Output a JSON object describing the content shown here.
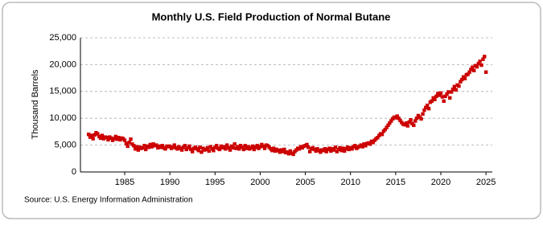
{
  "chart_data": {
    "type": "scatter",
    "title": "Monthly U.S. Field Production of Normal Butane",
    "y_label": "Thousand Barrels",
    "source": "Source: U.S. Energy Information Administration",
    "color": "#cc0000",
    "grid": true,
    "xlim": [
      1980.1,
      2025.7
    ],
    "xticks": [
      1985,
      1990,
      1995,
      2000,
      2005,
      2010,
      2015,
      2020,
      2025
    ],
    "ylim": [
      0,
      25000
    ],
    "yticks": [
      0,
      {
        "value": 5000,
        "label": "5,000"
      },
      {
        "value": 10000,
        "label": "10,000"
      },
      {
        "value": 15000,
        "label": "15,000"
      },
      {
        "value": 20000,
        "label": "20,000"
      },
      {
        "value": 25000,
        "label": "25,000"
      }
    ],
    "x": [
      1981,
      1981.17,
      1981.33,
      1981.5,
      1981.67,
      1981.83,
      1982,
      1982.17,
      1982.33,
      1982.5,
      1982.67,
      1982.83,
      1983,
      1983.17,
      1983.33,
      1983.5,
      1983.67,
      1983.83,
      1984,
      1984.17,
      1984.33,
      1984.5,
      1984.67,
      1984.83,
      1985,
      1985.17,
      1985.33,
      1985.5,
      1985.67,
      1985.83,
      1986,
      1986.17,
      1986.33,
      1986.5,
      1986.67,
      1986.83,
      1987,
      1987.17,
      1987.33,
      1987.5,
      1987.67,
      1987.83,
      1988,
      1988.17,
      1988.33,
      1988.5,
      1988.67,
      1988.83,
      1989,
      1989.17,
      1989.33,
      1989.5,
      1989.67,
      1989.83,
      1990,
      1990.17,
      1990.33,
      1990.5,
      1990.67,
      1990.83,
      1991,
      1991.17,
      1991.33,
      1991.5,
      1991.67,
      1991.83,
      1992,
      1992.17,
      1992.33,
      1992.5,
      1992.67,
      1992.83,
      1993,
      1993.17,
      1993.33,
      1993.5,
      1993.67,
      1993.83,
      1994,
      1994.17,
      1994.33,
      1994.5,
      1994.67,
      1994.83,
      1995,
      1995.17,
      1995.33,
      1995.5,
      1995.67,
      1995.83,
      1996,
      1996.17,
      1996.33,
      1996.5,
      1996.67,
      1996.83,
      1997,
      1997.17,
      1997.33,
      1997.5,
      1997.67,
      1997.83,
      1998,
      1998.17,
      1998.33,
      1998.5,
      1998.67,
      1998.83,
      1999,
      1999.17,
      1999.33,
      1999.5,
      1999.67,
      1999.83,
      2000,
      2000.17,
      2000.33,
      2000.5,
      2000.67,
      2000.83,
      2001,
      2001.17,
      2001.33,
      2001.5,
      2001.67,
      2001.83,
      2002,
      2002.17,
      2002.33,
      2002.5,
      2002.67,
      2002.83,
      2003,
      2003.17,
      2003.33,
      2003.5,
      2003.67,
      2003.83,
      2004,
      2004.17,
      2004.33,
      2004.5,
      2004.67,
      2004.83,
      2005,
      2005.17,
      2005.33,
      2005.5,
      2005.67,
      2005.83,
      2006,
      2006.17,
      2006.33,
      2006.5,
      2006.67,
      2006.83,
      2007,
      2007.17,
      2007.33,
      2007.5,
      2007.67,
      2007.83,
      2008,
      2008.17,
      2008.33,
      2008.5,
      2008.67,
      2008.83,
      2009,
      2009.17,
      2009.33,
      2009.5,
      2009.67,
      2009.83,
      2010,
      2010.17,
      2010.33,
      2010.5,
      2010.67,
      2010.83,
      2011,
      2011.17,
      2011.33,
      2011.5,
      2011.67,
      2011.83,
      2012,
      2012.17,
      2012.33,
      2012.5,
      2012.67,
      2012.83,
      2013,
      2013.17,
      2013.33,
      2013.5,
      2013.67,
      2013.83,
      2014,
      2014.17,
      2014.33,
      2014.5,
      2014.67,
      2014.83,
      2015,
      2015.17,
      2015.33,
      2015.5,
      2015.67,
      2015.83,
      2016,
      2016.17,
      2016.33,
      2016.5,
      2016.67,
      2016.83,
      2017,
      2017.17,
      2017.33,
      2017.5,
      2017.67,
      2017.83,
      2018,
      2018.17,
      2018.33,
      2018.5,
      2018.67,
      2018.83,
      2019,
      2019.17,
      2019.33,
      2019.5,
      2019.67,
      2019.83,
      2020,
      2020.17,
      2020.33,
      2020.5,
      2020.67,
      2020.83,
      2021,
      2021.17,
      2021.33,
      2021.5,
      2021.67,
      2021.83,
      2022,
      2022.17,
      2022.33,
      2022.5,
      2022.67,
      2022.83,
      2023,
      2023.17,
      2023.33,
      2023.5,
      2023.67,
      2023.83,
      2024,
      2024.17,
      2024.33,
      2024.5,
      2024.67,
      2024.83,
      2025
    ],
    "values": [
      7000,
      6500,
      6800,
      6200,
      6900,
      7300,
      7100,
      6600,
      6300,
      6800,
      6200,
      6500,
      6400,
      6000,
      6500,
      6300,
      5900,
      6200,
      6600,
      6100,
      6400,
      6000,
      6300,
      6200,
      5900,
      5300,
      4800,
      5500,
      6100,
      5200,
      4900,
      4300,
      4700,
      4100,
      4600,
      4400,
      4500,
      4900,
      4200,
      4800,
      4600,
      5100,
      4700,
      5200,
      4900,
      5000,
      4500,
      4800,
      4600,
      4900,
      4500,
      4300,
      4800,
      4700,
      4800,
      4400,
      4600,
      5000,
      4500,
      4300,
      4700,
      4400,
      4100,
      4600,
      4900,
      4200,
      4500,
      4800,
      4200,
      3800,
      4400,
      4600,
      4300,
      4000,
      4600,
      3700,
      4400,
      4100,
      4200,
      4500,
      3900,
      4700,
      4300,
      4000,
      4600,
      4900,
      4400,
      4200,
      4800,
      4500,
      4700,
      4300,
      5000,
      4500,
      4100,
      4800,
      4500,
      5200,
      4400,
      4700,
      4300,
      4900,
      4600,
      4200,
      4900,
      4400,
      4700,
      4300,
      4500,
      4800,
      4200,
      4600,
      4900,
      4400,
      4700,
      5100,
      4800,
      4400,
      5000,
      4900,
      4600,
      4300,
      4000,
      4400,
      3900,
      4200,
      4000,
      3700,
      4100,
      3800,
      4200,
      3600,
      3700,
      3400,
      3900,
      3500,
      3300,
      3800,
      4100,
      4400,
      4300,
      4700,
      4500,
      4800,
      4900,
      5100,
      4600,
      3800,
      4300,
      4500,
      4200,
      3900,
      4300,
      4000,
      3700,
      4100,
      4000,
      4300,
      3800,
      4200,
      4400,
      3900,
      4300,
      4100,
      4600,
      3800,
      4200,
      4500,
      4000,
      4400,
      3900,
      4300,
      4600,
      4200,
      4500,
      4300,
      4700,
      4900,
      4400,
      4600,
      4800,
      5000,
      4700,
      5200,
      4900,
      5300,
      5400,
      5200,
      5700,
      5500,
      5900,
      6200,
      6400,
      6800,
      7100,
      7000,
      7600,
      7900,
      8300,
      8700,
      9100,
      9500,
      9900,
      10200,
      10100,
      10400,
      10000,
      9600,
      9200,
      8900,
      8800,
      9100,
      8600,
      9300,
      9700,
      9000,
      8700,
      9500,
      10000,
      10500,
      10200,
      9900,
      10800,
      11500,
      12000,
      12400,
      11800,
      13000,
      13200,
      13800,
      13500,
      14100,
      14600,
      14300,
      14700,
      14000,
      13200,
      14100,
      14500,
      14900,
      13800,
      14900,
      15400,
      15900,
      15300,
      16200,
      16000,
      16800,
      17200,
      17700,
      17400,
      18100,
      18200,
      18600,
      19100,
      19500,
      18900,
      19800,
      19600,
      20200,
      20600,
      19900,
      21000,
      21500,
      18600
    ]
  }
}
